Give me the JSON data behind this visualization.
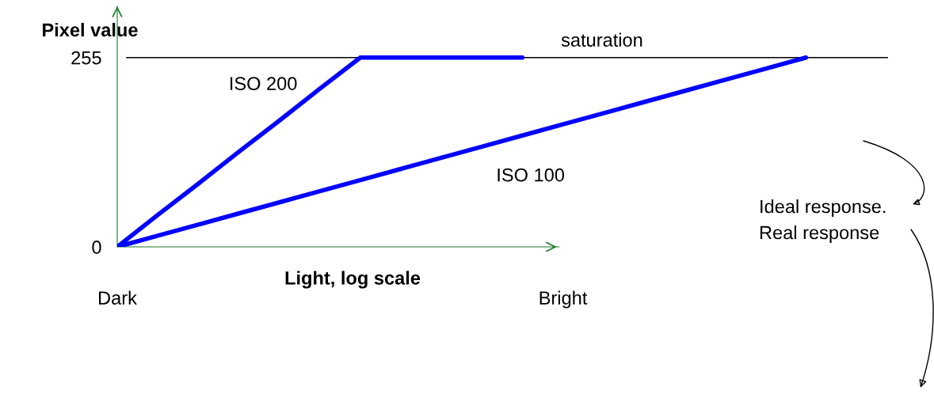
{
  "chart_data": {
    "type": "line",
    "ylabel": "Pixel value",
    "xlabel": "Light, log scale",
    "categories": [
      "Dark",
      null,
      null,
      null,
      null,
      null,
      null,
      null,
      null,
      null,
      null,
      "Bright",
      null,
      null,
      null,
      null,
      null,
      null,
      null,
      null
    ],
    "ylim": [
      0,
      324
    ],
    "yticks": [
      0,
      255
    ],
    "series": [
      {
        "name": "ISO 200",
        "color": "#0000ff",
        "values": [
          0,
          43,
          85,
          128,
          170,
          213,
          255,
          255,
          255,
          255,
          255,
          null,
          null,
          null,
          null,
          null,
          null,
          null,
          null,
          null
        ]
      },
      {
        "name": "ISO 100",
        "color": "#0000ff",
        "values": [
          0,
          15,
          30,
          45,
          60,
          75,
          90,
          105,
          120,
          135,
          150,
          165,
          180,
          195,
          210,
          225,
          240,
          255,
          null,
          null
        ]
      }
    ],
    "ref_lines": [
      {
        "axis": "y",
        "value": 255,
        "label": "saturation",
        "color": "#000000"
      }
    ],
    "annotations": [
      "Ideal response.",
      "Real response"
    ],
    "grid": false,
    "marker": "none",
    "line_style": "solid"
  }
}
